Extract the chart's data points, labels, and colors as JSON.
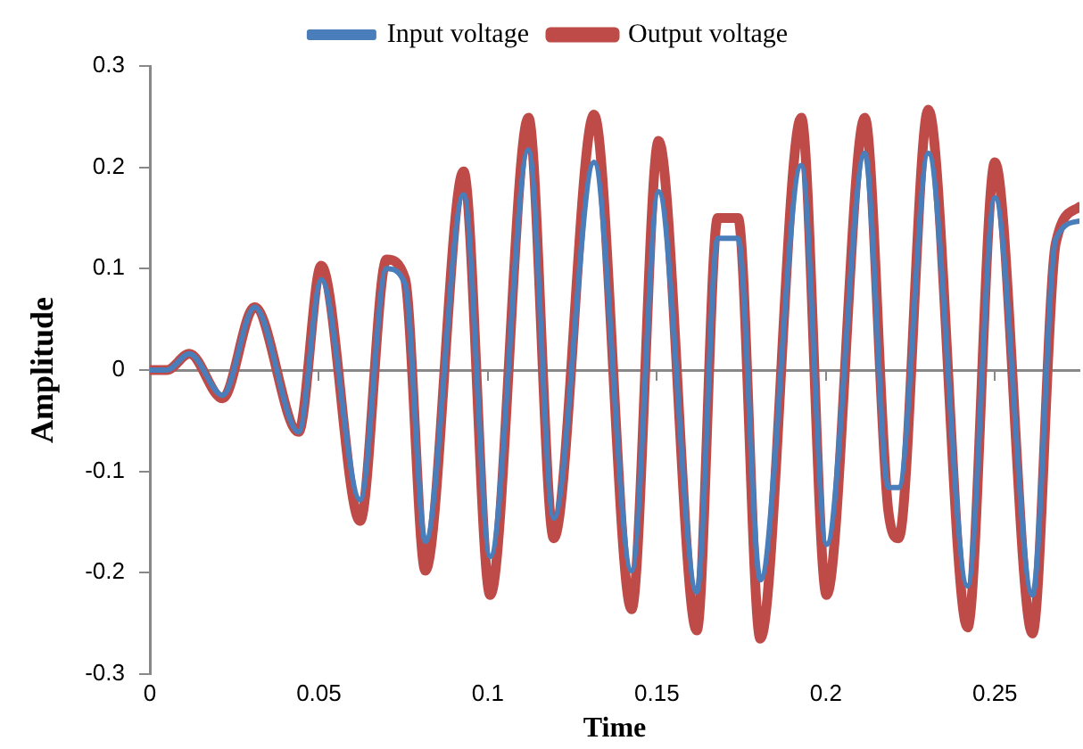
{
  "chart_data": {
    "type": "line",
    "xlabel": "Time",
    "ylabel": "Amplitude",
    "x": [
      0,
      0.005,
      0.0117,
      0.0215,
      0.031,
      0.044,
      0.0507,
      0.0622,
      0.07,
      0.0755,
      0.0815,
      0.0928,
      0.1007,
      0.112,
      0.1195,
      0.1314,
      0.1425,
      0.1505,
      0.1618,
      0.168,
      0.174,
      0.1806,
      0.1927,
      0.2002,
      0.2115,
      0.2185,
      0.2215,
      0.2303,
      0.2419,
      0.25,
      0.2611,
      0.268,
      0.275
    ],
    "series": [
      {
        "name": "Input voltage",
        "color": "#4a7ebb",
        "values": [
          0,
          0,
          0.016,
          -0.025,
          0.062,
          -0.061,
          0.089,
          -0.128,
          0.1,
          0.085,
          -0.169,
          0.173,
          -0.184,
          0.217,
          -0.146,
          0.205,
          -0.198,
          0.176,
          -0.219,
          0.13,
          0.13,
          -0.207,
          0.202,
          -0.172,
          0.214,
          -0.116,
          -0.116,
          0.214,
          -0.213,
          0.17,
          -0.222,
          0.129,
          0.147
        ]
      },
      {
        "name": "Output voltage",
        "color": "#be4b48",
        "values": [
          0,
          0,
          0.016,
          -0.028,
          0.062,
          -0.061,
          0.103,
          -0.149,
          0.109,
          0.09,
          -0.198,
          0.196,
          -0.222,
          0.249,
          -0.166,
          0.252,
          -0.236,
          0.226,
          -0.257,
          0.15,
          0.15,
          -0.265,
          0.249,
          -0.222,
          0.249,
          -0.14,
          -0.166,
          0.257,
          -0.254,
          0.205,
          -0.26,
          0.125,
          0.161
        ]
      }
    ],
    "xlim": [
      0,
      0.275
    ],
    "xticks": [
      0,
      0.05,
      0.1,
      0.15,
      0.2,
      0.25
    ],
    "ylim": [
      -0.3,
      0.3
    ],
    "yticks": [
      -0.3,
      -0.2,
      -0.1,
      0,
      0.1,
      0.2,
      0.3
    ],
    "legend": "top",
    "marker": "none",
    "line_style": "solid"
  }
}
